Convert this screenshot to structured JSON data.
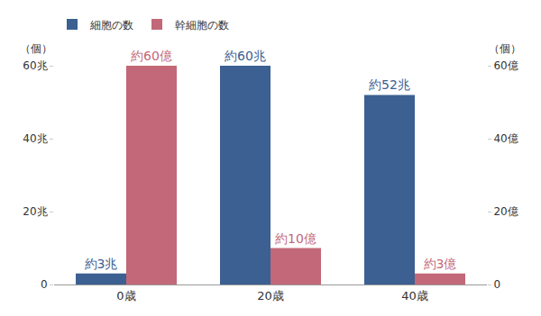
{
  "chart_data": {
    "type": "bar",
    "categories": [
      "0歳",
      "20歳",
      "40歳"
    ],
    "series": [
      {
        "name": "細胞の数",
        "color": "#3b6091",
        "values": [
          3,
          60,
          52
        ],
        "value_labels": [
          "約3兆",
          "約60兆",
          "約52兆"
        ]
      },
      {
        "name": "幹細胞の数",
        "color": "#c26878",
        "values": [
          60,
          10,
          3
        ],
        "value_labels": [
          "約60億",
          "約10億",
          "約3億"
        ],
        "axis": "y2"
      }
    ],
    "y_label": "（個）",
    "y2_label": "（個）",
    "ylim": [
      0,
      60
    ],
    "yticks": [
      0,
      {
        "value": 20,
        "label": "20兆"
      },
      {
        "value": 40,
        "label": "40兆"
      },
      {
        "value": 60,
        "label": "60兆"
      }
    ],
    "y2lim": [
      0,
      60
    ],
    "y2ticks": [
      0,
      {
        "value": 20,
        "label": "20億"
      },
      {
        "value": 40,
        "label": "40億"
      },
      {
        "value": 60,
        "label": "60億"
      }
    ],
    "grid": false,
    "legend": "upper left",
    "data_labels": true
  }
}
